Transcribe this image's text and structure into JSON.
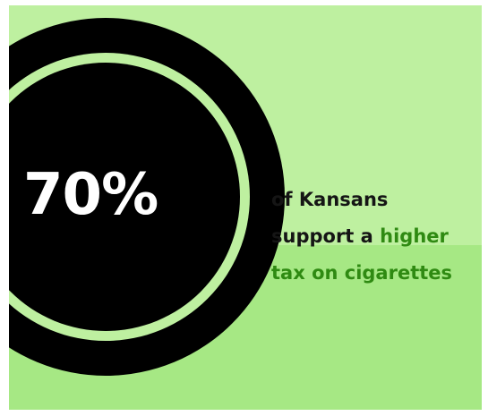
{
  "stat": {
    "value": "70%"
  },
  "caption": {
    "line1": "of Kansans",
    "line2_prefix": "support a ",
    "line2_highlight": "higher",
    "line3_highlight": "tax on cigarettes"
  },
  "colors": {
    "background_top": "#bef0a0",
    "background_bottom": "#a6e884",
    "circle": "#000000",
    "stat_text": "#ffffff",
    "caption_text": "#151515",
    "highlight_text": "#2f8a12"
  }
}
